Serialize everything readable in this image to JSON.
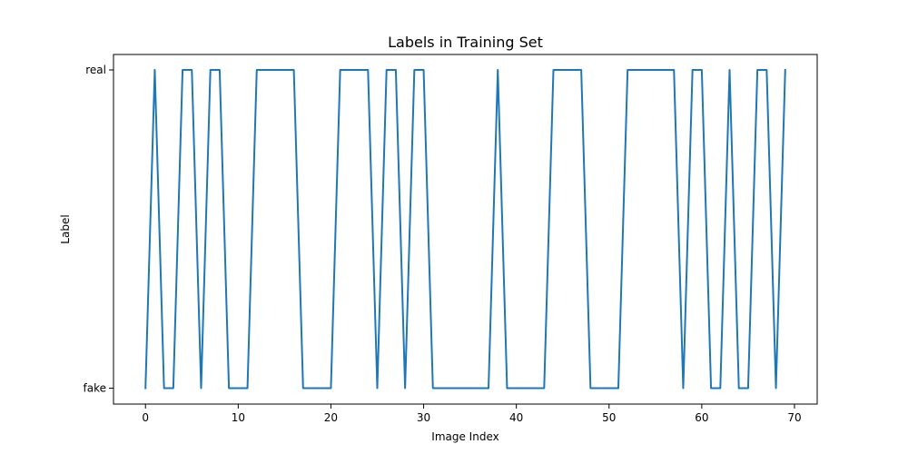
{
  "chart_data": {
    "type": "line",
    "title": "Labels in Training Set",
    "xlabel": "Image Index",
    "ylabel": "Label",
    "xlim": [
      -3.45,
      72.45
    ],
    "x_ticks": [
      0,
      10,
      20,
      30,
      40,
      50,
      60,
      70
    ],
    "y_categories": [
      "fake",
      "real"
    ],
    "grid": false,
    "series": [
      {
        "color": "#1f77b4",
        "x": [
          0,
          1,
          2,
          3,
          4,
          5,
          6,
          7,
          8,
          9,
          10,
          11,
          12,
          13,
          14,
          15,
          16,
          17,
          18,
          19,
          20,
          21,
          22,
          23,
          24,
          25,
          26,
          27,
          28,
          29,
          30,
          31,
          32,
          33,
          34,
          35,
          36,
          37,
          38,
          39,
          40,
          41,
          42,
          43,
          44,
          45,
          46,
          47,
          48,
          49,
          50,
          51,
          52,
          53,
          54,
          55,
          56,
          57,
          58,
          59,
          60,
          61,
          62,
          63,
          64,
          65,
          66,
          67,
          68,
          69
        ],
        "y": [
          0,
          1,
          0,
          0,
          1,
          1,
          0,
          1,
          1,
          0,
          0,
          0,
          1,
          1,
          1,
          1,
          1,
          0,
          0,
          0,
          0,
          1,
          1,
          1,
          1,
          0,
          1,
          1,
          0,
          1,
          1,
          0,
          0,
          0,
          0,
          0,
          0,
          0,
          1,
          0,
          0,
          0,
          0,
          0,
          1,
          1,
          1,
          1,
          0,
          0,
          0,
          0,
          1,
          1,
          1,
          1,
          1,
          1,
          0,
          1,
          1,
          0,
          0,
          1,
          0,
          0,
          1,
          1,
          0,
          1
        ]
      }
    ]
  }
}
